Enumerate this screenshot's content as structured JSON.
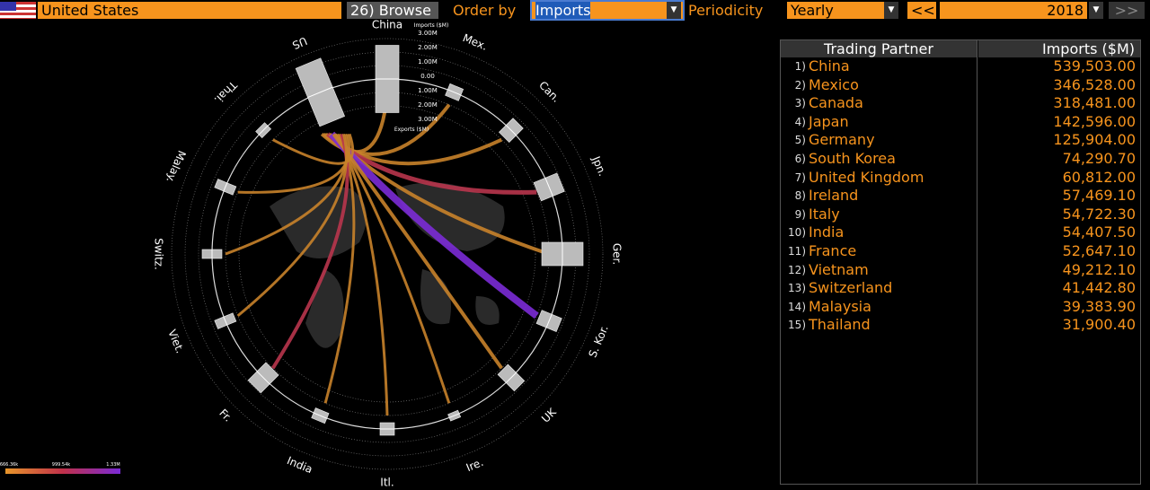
{
  "top_bar": {
    "country": "United States",
    "browse": "26) Browse",
    "order_by_label": "Order by",
    "order_by": "Imports",
    "periodicity_label": "Periodicity",
    "periodicity": "Yearly",
    "prev": "<<",
    "year": "2018",
    "next": ">>"
  },
  "diagram": {
    "nodes": [
      "China",
      "Mex.",
      "Can.",
      "Jpn.",
      "Ger.",
      "S. Kor.",
      "UK",
      "Ire.",
      "Itl.",
      "India",
      "Fr.",
      "Viet.",
      "Switz.",
      "Malay.",
      "Thai.",
      "US"
    ],
    "scale": {
      "imports_title": "Imports ($M)",
      "ticks": [
        "3.00M",
        "2.00M",
        "1.00M",
        "0.00",
        "1.00M",
        "2.00M",
        "3.00M"
      ],
      "exports_title": "Exports ($M)"
    },
    "legend": [
      "666.36k",
      "999.54k",
      "1.33M"
    ]
  },
  "table": {
    "header": [
      "Trading Partner",
      "Imports ($M)"
    ],
    "rows": [
      [
        "1)",
        "China",
        "539,503.00"
      ],
      [
        "2)",
        "Mexico",
        "346,528.00"
      ],
      [
        "3)",
        "Canada",
        "318,481.00"
      ],
      [
        "4)",
        "Japan",
        "142,596.00"
      ],
      [
        "5)",
        "Germany",
        "125,904.00"
      ],
      [
        "6)",
        "South Korea",
        "74,290.70"
      ],
      [
        "7)",
        "United Kingdom",
        "60,812.00"
      ],
      [
        "8)",
        "Ireland",
        "57,469.10"
      ],
      [
        "9)",
        "Italy",
        "54,722.30"
      ],
      [
        "10)",
        "India",
        "54,407.50"
      ],
      [
        "11)",
        "France",
        "52,647.10"
      ],
      [
        "12)",
        "Vietnam",
        "49,212.10"
      ],
      [
        "13)",
        "Switzerland",
        "41,442.80"
      ],
      [
        "14)",
        "Malaysia",
        "39,383.90"
      ],
      [
        "15)",
        "Thailand",
        "31,900.40"
      ]
    ]
  }
}
